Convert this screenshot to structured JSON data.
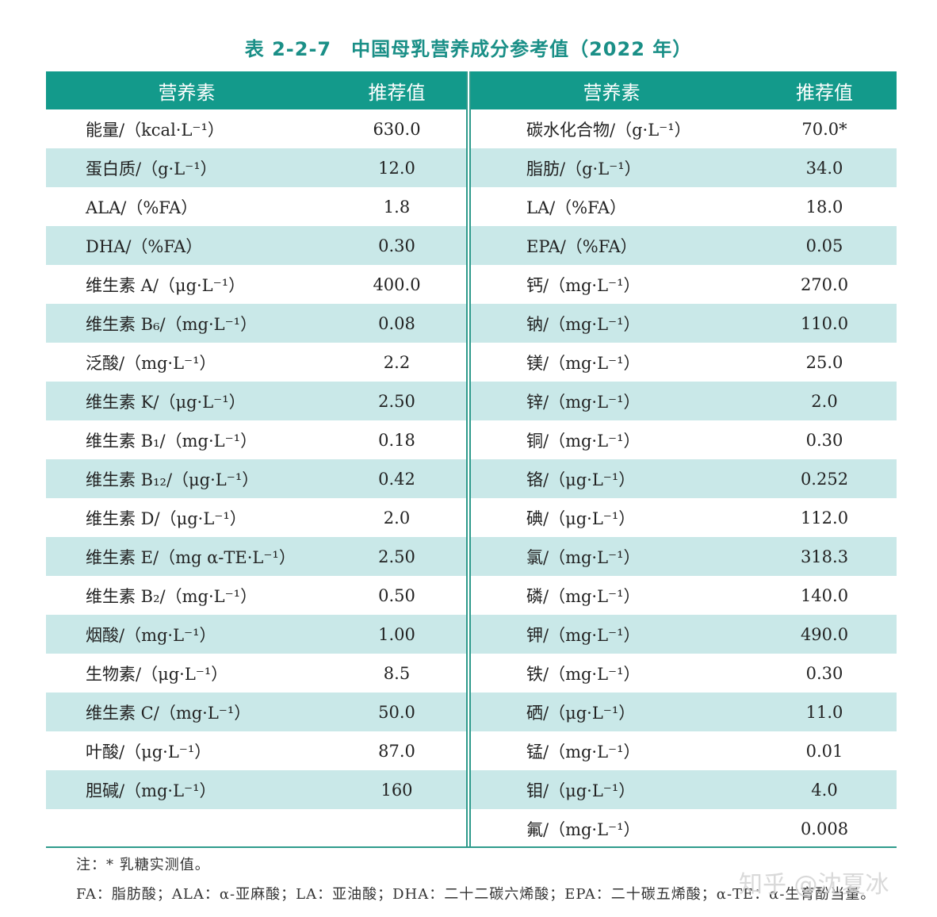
{
  "title": "表 2-2-7　中国母乳营养成分参考值（2022 年）",
  "headers": {
    "name": "营养素",
    "value": "推荐值"
  },
  "left_rows": [
    {
      "name": "能量/（kcal·L⁻¹）",
      "value": "630.0"
    },
    {
      "name": "蛋白质/（g·L⁻¹）",
      "value": "12.0"
    },
    {
      "name": "ALA/（%FA）",
      "value": "1.8"
    },
    {
      "name": "DHA/（%FA）",
      "value": "0.30"
    },
    {
      "name": "维生素 A/（μg·L⁻¹）",
      "value": "400.0"
    },
    {
      "name": "维生素 B₆/（mg·L⁻¹）",
      "value": "0.08"
    },
    {
      "name": "泛酸/（mg·L⁻¹）",
      "value": "2.2"
    },
    {
      "name": "维生素 K/（μg·L⁻¹）",
      "value": "2.50"
    },
    {
      "name": "维生素 B₁/（mg·L⁻¹）",
      "value": "0.18"
    },
    {
      "name": "维生素 B₁₂/（μg·L⁻¹）",
      "value": "0.42"
    },
    {
      "name": "维生素 D/（μg·L⁻¹）",
      "value": "2.0"
    },
    {
      "name": "维生素 E/（mg α-TE·L⁻¹）",
      "value": "2.50"
    },
    {
      "name": "维生素 B₂/（mg·L⁻¹）",
      "value": "0.50"
    },
    {
      "name": "烟酸/（mg·L⁻¹）",
      "value": "1.00"
    },
    {
      "name": "生物素/（μg·L⁻¹）",
      "value": "8.5"
    },
    {
      "name": "维生素 C/（mg·L⁻¹）",
      "value": "50.0"
    },
    {
      "name": "叶酸/（μg·L⁻¹）",
      "value": "87.0"
    },
    {
      "name": "胆碱/（mg·L⁻¹）",
      "value": "160"
    },
    {
      "name": "",
      "value": ""
    }
  ],
  "right_rows": [
    {
      "name": "碳水化合物/（g·L⁻¹）",
      "value": "70.0*"
    },
    {
      "name": "脂肪/（g·L⁻¹）",
      "value": "34.0"
    },
    {
      "name": "LA/（%FA）",
      "value": "18.0"
    },
    {
      "name": "EPA/（%FA）",
      "value": "0.05"
    },
    {
      "name": "钙/（mg·L⁻¹）",
      "value": "270.0"
    },
    {
      "name": "钠/（mg·L⁻¹）",
      "value": "110.0"
    },
    {
      "name": "镁/（mg·L⁻¹）",
      "value": "25.0"
    },
    {
      "name": "锌/（mg·L⁻¹）",
      "value": "2.0"
    },
    {
      "name": "铜/（mg·L⁻¹）",
      "value": "0.30"
    },
    {
      "name": "铬/（μg·L⁻¹）",
      "value": "0.252"
    },
    {
      "name": "碘/（μg·L⁻¹）",
      "value": "112.0"
    },
    {
      "name": "氯/（mg·L⁻¹）",
      "value": "318.3"
    },
    {
      "name": "磷/（mg·L⁻¹）",
      "value": "140.0"
    },
    {
      "name": "钾/（mg·L⁻¹）",
      "value": "490.0"
    },
    {
      "name": "铁/（mg·L⁻¹）",
      "value": "0.30"
    },
    {
      "name": "硒/（μg·L⁻¹）",
      "value": "11.0"
    },
    {
      "name": "锰/（mg·L⁻¹）",
      "value": "0.01"
    },
    {
      "name": "钼/（μg·L⁻¹）",
      "value": "4.0"
    },
    {
      "name": "氟/（mg·L⁻¹）",
      "value": "0.008"
    }
  ],
  "notes": {
    "line1": "注：* 乳糖实测值。",
    "line2": "FA：脂肪酸；ALA：α-亚麻酸；LA：亚油酸；DHA：二十二碳六烯酸；EPA：二十碳五烯酸；α-TE：α-生育酚当量。"
  },
  "watermark": "知乎 @沈夏冰",
  "colors": {
    "header_bg": "#139a8b",
    "alt_row": "#c9e8e8",
    "title": "#1a8f87"
  }
}
